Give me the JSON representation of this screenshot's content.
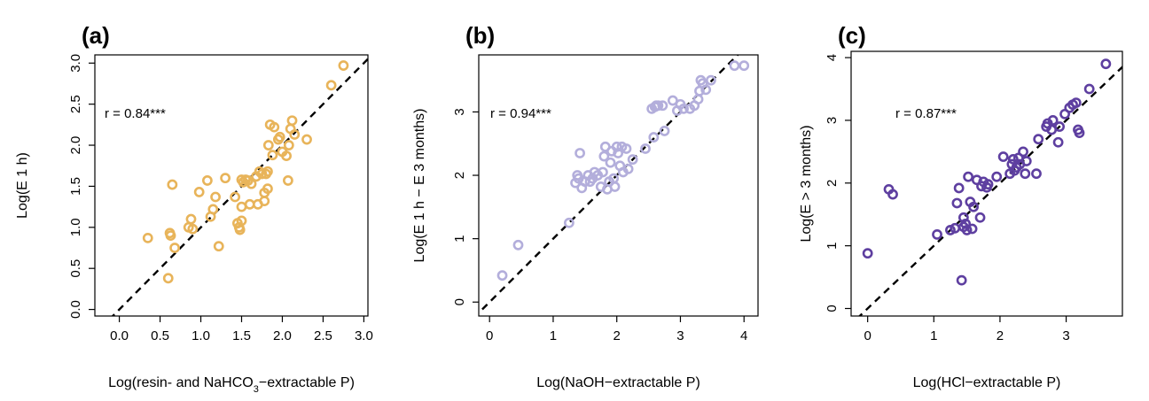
{
  "chart_data": [
    {
      "type": "scatter",
      "panel_label": "(a)",
      "xlabel": "Log(resin- and NaHCO3−extractable P)",
      "ylabel": "Log(E 1 h)",
      "annotation": "r = 0.84***",
      "xlim": [
        -0.3,
        3.05
      ],
      "ylim": [
        -0.08,
        3.1
      ],
      "xticks": [
        0.0,
        0.5,
        1.0,
        1.5,
        2.0,
        2.5,
        3.0
      ],
      "xtick_labels": [
        "0.0",
        "0.5",
        "1.0",
        "1.5",
        "2.0",
        "2.5",
        "3.0"
      ],
      "yticks": [
        0.0,
        0.5,
        1.0,
        1.5,
        2.0,
        2.5,
        3.0
      ],
      "ytick_labels": [
        "0.0",
        "0.5",
        "1.0",
        "1.5",
        "2.0",
        "2.5",
        "3.0"
      ],
      "color": "#E8B45A",
      "reference_line": "1:1 dashed",
      "grid": false,
      "points": [
        [
          0.35,
          0.87
        ],
        [
          0.6,
          0.38
        ],
        [
          0.62,
          0.93
        ],
        [
          0.63,
          0.9
        ],
        [
          0.65,
          1.52
        ],
        [
          0.68,
          0.75
        ],
        [
          0.85,
          1.0
        ],
        [
          0.88,
          1.1
        ],
        [
          0.9,
          0.98
        ],
        [
          0.98,
          1.43
        ],
        [
          1.08,
          1.57
        ],
        [
          1.12,
          1.13
        ],
        [
          1.15,
          1.22
        ],
        [
          1.18,
          1.37
        ],
        [
          1.22,
          0.77
        ],
        [
          1.3,
          1.6
        ],
        [
          1.42,
          1.37
        ],
        [
          1.45,
          1.05
        ],
        [
          1.47,
          1.0
        ],
        [
          1.48,
          0.97
        ],
        [
          1.5,
          1.08
        ],
        [
          1.5,
          1.25
        ],
        [
          1.5,
          1.58
        ],
        [
          1.52,
          1.55
        ],
        [
          1.55,
          1.58
        ],
        [
          1.58,
          1.57
        ],
        [
          1.6,
          1.28
        ],
        [
          1.62,
          1.53
        ],
        [
          1.68,
          1.62
        ],
        [
          1.7,
          1.28
        ],
        [
          1.72,
          1.68
        ],
        [
          1.75,
          1.65
        ],
        [
          1.78,
          1.32
        ],
        [
          1.78,
          1.42
        ],
        [
          1.8,
          1.65
        ],
        [
          1.82,
          1.68
        ],
        [
          1.82,
          1.47
        ],
        [
          1.83,
          2.0
        ],
        [
          1.85,
          2.25
        ],
        [
          1.88,
          1.88
        ],
        [
          1.9,
          2.22
        ],
        [
          1.95,
          2.07
        ],
        [
          1.97,
          2.1
        ],
        [
          2.0,
          1.92
        ],
        [
          2.05,
          1.87
        ],
        [
          2.07,
          1.57
        ],
        [
          2.08,
          2.0
        ],
        [
          2.1,
          2.2
        ],
        [
          2.12,
          2.3
        ],
        [
          2.15,
          2.13
        ],
        [
          2.3,
          2.07
        ],
        [
          2.6,
          2.73
        ],
        [
          2.75,
          2.97
        ]
      ]
    },
    {
      "type": "scatter",
      "panel_label": "(b)",
      "xlabel": "Log(NaOH−extractable P)",
      "ylabel": "Log(E 1 h − E 3 months)",
      "annotation": "r = 0.94***",
      "xlim": [
        -0.17,
        4.22
      ],
      "ylim": [
        -0.22,
        3.9
      ],
      "xticks": [
        0,
        1,
        2,
        3,
        4
      ],
      "xtick_labels": [
        "0",
        "1",
        "2",
        "3",
        "4"
      ],
      "yticks": [
        0,
        1,
        2,
        3
      ],
      "ytick_labels": [
        "0",
        "1",
        "2",
        "3"
      ],
      "color": "#B3AEDB",
      "reference_line": "1:1 dashed",
      "grid": false,
      "points": [
        [
          0.2,
          0.42
        ],
        [
          0.45,
          0.9
        ],
        [
          1.25,
          1.25
        ],
        [
          1.35,
          1.88
        ],
        [
          1.38,
          2.0
        ],
        [
          1.4,
          1.95
        ],
        [
          1.42,
          2.35
        ],
        [
          1.45,
          1.8
        ],
        [
          1.5,
          1.9
        ],
        [
          1.55,
          2.0
        ],
        [
          1.58,
          1.9
        ],
        [
          1.62,
          1.95
        ],
        [
          1.65,
          2.05
        ],
        [
          1.7,
          2.0
        ],
        [
          1.75,
          1.82
        ],
        [
          1.78,
          2.05
        ],
        [
          1.8,
          2.3
        ],
        [
          1.82,
          2.45
        ],
        [
          1.85,
          1.78
        ],
        [
          1.88,
          1.9
        ],
        [
          1.9,
          2.2
        ],
        [
          1.92,
          2.38
        ],
        [
          1.95,
          1.95
        ],
        [
          1.97,
          1.82
        ],
        [
          2.0,
          2.45
        ],
        [
          2.02,
          2.35
        ],
        [
          2.05,
          2.15
        ],
        [
          2.08,
          2.45
        ],
        [
          2.1,
          2.05
        ],
        [
          2.15,
          2.42
        ],
        [
          2.18,
          2.1
        ],
        [
          2.25,
          2.25
        ],
        [
          2.45,
          2.42
        ],
        [
          2.55,
          3.05
        ],
        [
          2.58,
          2.6
        ],
        [
          2.6,
          3.08
        ],
        [
          2.62,
          3.1
        ],
        [
          2.65,
          3.1
        ],
        [
          2.72,
          3.1
        ],
        [
          2.75,
          2.7
        ],
        [
          2.88,
          3.18
        ],
        [
          2.95,
          3.02
        ],
        [
          3.0,
          3.12
        ],
        [
          3.05,
          3.05
        ],
        [
          3.15,
          3.05
        ],
        [
          3.22,
          3.1
        ],
        [
          3.28,
          3.2
        ],
        [
          3.3,
          3.33
        ],
        [
          3.32,
          3.5
        ],
        [
          3.35,
          3.45
        ],
        [
          3.4,
          3.35
        ],
        [
          3.48,
          3.5
        ],
        [
          3.85,
          3.73
        ],
        [
          4.0,
          3.73
        ]
      ]
    },
    {
      "type": "scatter",
      "panel_label": "(c)",
      "xlabel": "Log(HCl−extractable P)",
      "ylabel": "Log(E > 3 months)",
      "annotation": "r = 0.87***",
      "xlim": [
        -0.25,
        3.85
      ],
      "ylim": [
        -0.12,
        4.1
      ],
      "xticks": [
        0,
        1,
        2,
        3
      ],
      "xtick_labels": [
        "0",
        "1",
        "2",
        "3"
      ],
      "yticks": [
        0,
        1,
        2,
        3,
        4
      ],
      "ytick_labels": [
        "0",
        "1",
        "2",
        "3",
        "4"
      ],
      "color": "#5E3FA0",
      "reference_line": "1:1 dashed",
      "grid": false,
      "points": [
        [
          0.0,
          0.88
        ],
        [
          0.32,
          1.9
        ],
        [
          0.38,
          1.82
        ],
        [
          1.05,
          1.18
        ],
        [
          1.25,
          1.25
        ],
        [
          1.32,
          1.28
        ],
        [
          1.35,
          1.68
        ],
        [
          1.38,
          1.92
        ],
        [
          1.42,
          0.45
        ],
        [
          1.45,
          1.45
        ],
        [
          1.45,
          1.3
        ],
        [
          1.48,
          1.35
        ],
        [
          1.5,
          1.25
        ],
        [
          1.52,
          2.1
        ],
        [
          1.55,
          1.7
        ],
        [
          1.58,
          1.27
        ],
        [
          1.6,
          1.62
        ],
        [
          1.65,
          2.05
        ],
        [
          1.7,
          1.45
        ],
        [
          1.72,
          1.95
        ],
        [
          1.75,
          2.02
        ],
        [
          1.8,
          1.93
        ],
        [
          1.82,
          1.98
        ],
        [
          1.95,
          2.1
        ],
        [
          2.05,
          2.42
        ],
        [
          2.15,
          2.15
        ],
        [
          2.18,
          2.3
        ],
        [
          2.2,
          2.38
        ],
        [
          2.22,
          2.2
        ],
        [
          2.25,
          2.25
        ],
        [
          2.28,
          2.4
        ],
        [
          2.3,
          2.3
        ],
        [
          2.35,
          2.5
        ],
        [
          2.38,
          2.15
        ],
        [
          2.4,
          2.35
        ],
        [
          2.55,
          2.15
        ],
        [
          2.58,
          2.7
        ],
        [
          2.7,
          2.9
        ],
        [
          2.72,
          2.95
        ],
        [
          2.78,
          2.85
        ],
        [
          2.8,
          3.0
        ],
        [
          2.88,
          2.65
        ],
        [
          2.9,
          2.9
        ],
        [
          2.98,
          3.1
        ],
        [
          3.05,
          3.2
        ],
        [
          3.1,
          3.25
        ],
        [
          3.15,
          3.28
        ],
        [
          3.18,
          2.85
        ],
        [
          3.2,
          2.8
        ],
        [
          3.35,
          3.5
        ],
        [
          3.6,
          3.9
        ]
      ]
    }
  ]
}
